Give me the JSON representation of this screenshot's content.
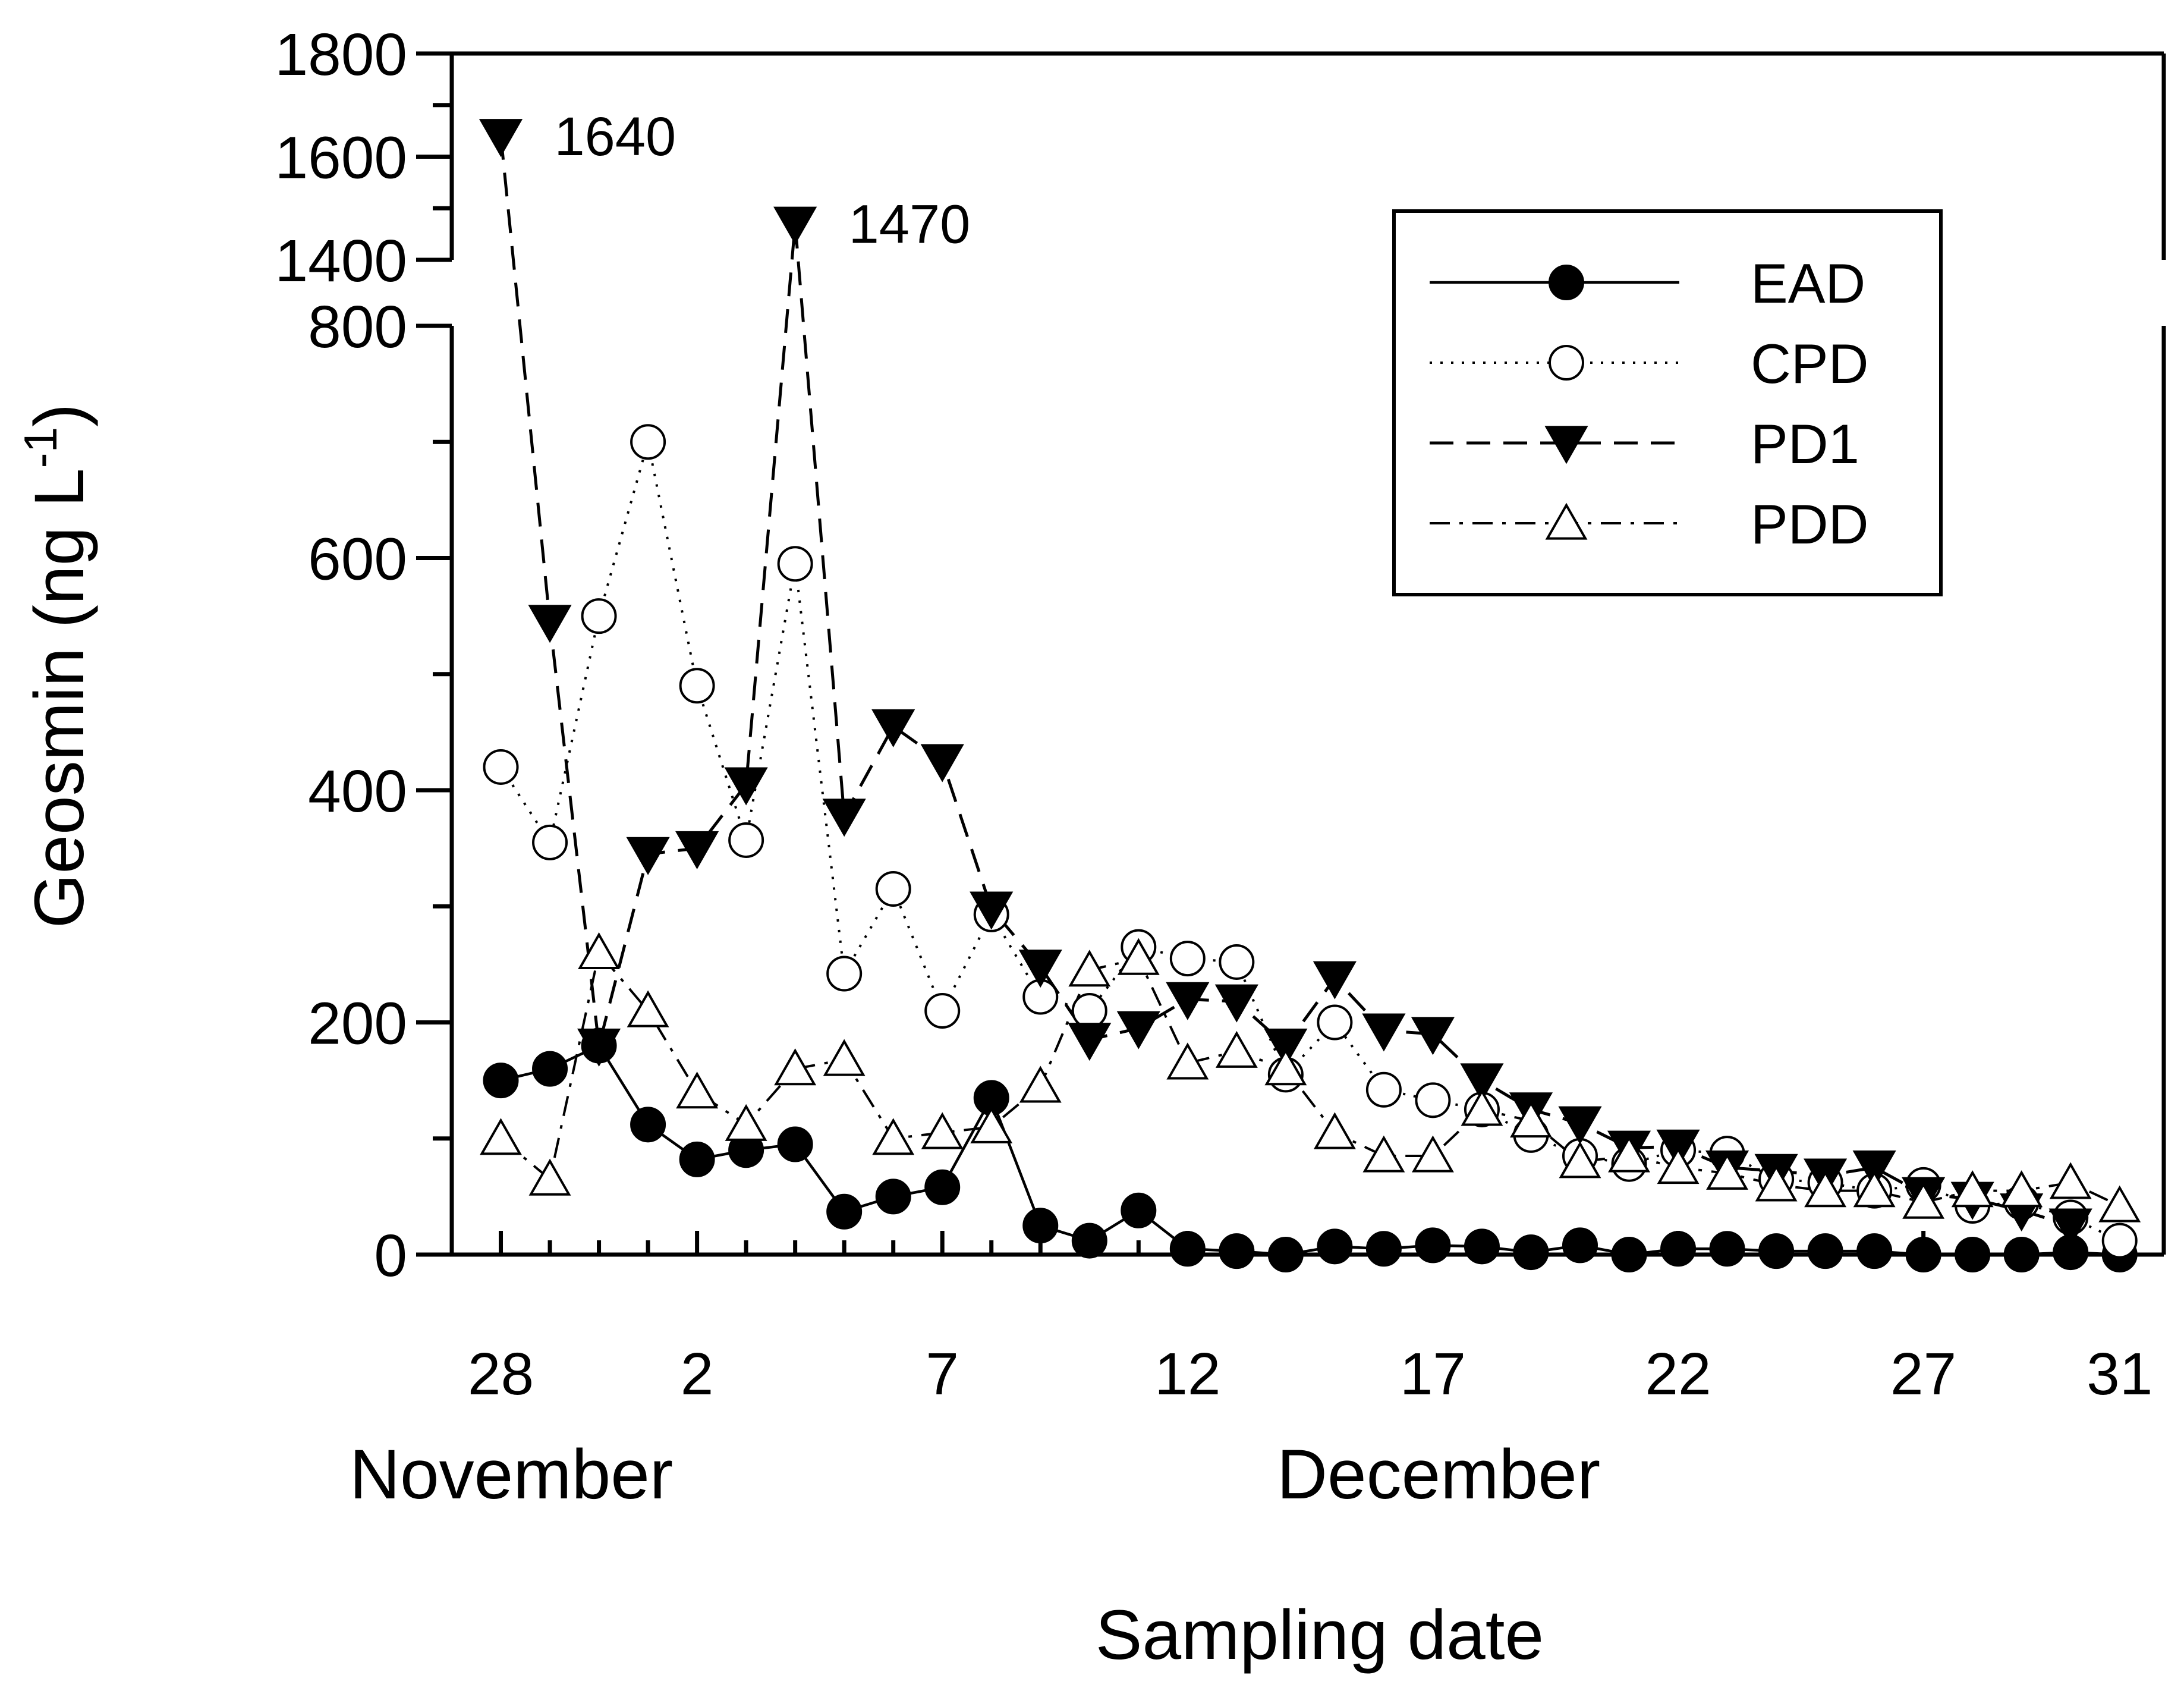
{
  "chart_data": {
    "type": "line",
    "title": "",
    "xlabel": "Sampling date",
    "ylabel": "Geosmin (ng L",
    "ylabel_superscript": "-1",
    "ylabel_close": ")",
    "month_labels": [
      "November",
      "December"
    ],
    "x_tick_labels": [
      {
        "day": 0,
        "label": "28"
      },
      {
        "day": 4,
        "label": "2"
      },
      {
        "day": 9,
        "label": "7"
      },
      {
        "day": 14,
        "label": "12"
      },
      {
        "day": 19,
        "label": "17"
      },
      {
        "day": 24,
        "label": "22"
      },
      {
        "day": 29,
        "label": "27"
      },
      {
        "day": 33,
        "label": "31"
      }
    ],
    "x_range": [
      -1,
      33.9
    ],
    "y_axis": {
      "broken": true,
      "lower_range": [
        0,
        800
      ],
      "upper_range": [
        1400,
        1800
      ],
      "lower_ticks": [
        "0",
        "200",
        "400",
        "600",
        "800"
      ],
      "upper_ticks": [
        "1400",
        "1600",
        "1800"
      ]
    },
    "x": [
      0,
      1,
      2,
      3,
      4,
      5,
      6,
      7,
      8,
      9,
      10,
      11,
      12,
      13,
      14,
      15,
      16,
      17,
      18,
      19,
      20,
      21,
      22,
      23,
      24,
      25,
      26,
      27,
      28,
      29,
      30,
      31,
      32,
      33
    ],
    "series": [
      {
        "name": "EAD",
        "line": "solid",
        "marker": "filled-circle",
        "values": [
          150,
          160,
          180,
          112,
          82,
          90,
          95,
          37,
          50,
          58,
          135,
          25,
          12,
          38,
          5,
          3,
          0,
          7,
          5,
          8,
          7,
          2,
          8,
          0,
          5,
          5,
          3,
          3,
          3,
          0,
          0,
          0,
          2,
          0
        ]
      },
      {
        "name": "CPD",
        "line": "dotted",
        "marker": "open-circle",
        "values": [
          420,
          355,
          550,
          700,
          490,
          357,
          595,
          242,
          315,
          210,
          293,
          222,
          210,
          265,
          255,
          252,
          155,
          200,
          142,
          133,
          125,
          103,
          85,
          78,
          90,
          87,
          65,
          62,
          55,
          60,
          42,
          45,
          32,
          12
        ]
      },
      {
        "name": "PD1",
        "line": "dashed",
        "marker": "filled-triangle-down",
        "values": [
          1640,
          545,
          180,
          345,
          350,
          405,
          1470,
          378,
          455,
          425,
          298,
          248,
          185,
          195,
          220,
          218,
          180,
          238,
          193,
          190,
          150,
          125,
          113,
          92,
          93,
          75,
          72,
          68,
          75,
          52,
          48,
          38,
          25,
          null
        ]
      },
      {
        "name": "PDD",
        "line": "dash-dot",
        "marker": "open-triangle-up",
        "values": [
          100,
          65,
          260,
          210,
          140,
          112,
          160,
          168,
          100,
          105,
          110,
          145,
          245,
          255,
          165,
          175,
          160,
          105,
          85,
          85,
          125,
          115,
          80,
          85,
          75,
          70,
          60,
          55,
          55,
          45,
          55,
          55,
          62,
          42
        ]
      }
    ],
    "annotations": [
      {
        "series": "PD1",
        "day": 0,
        "value": 1640,
        "text": "1640"
      },
      {
        "series": "PD1",
        "day": 6,
        "value": 1470,
        "text": "1470"
      }
    ],
    "legend": {
      "position": "top-right",
      "entries": [
        "EAD",
        "CPD",
        "PD1",
        "PDD"
      ]
    }
  }
}
